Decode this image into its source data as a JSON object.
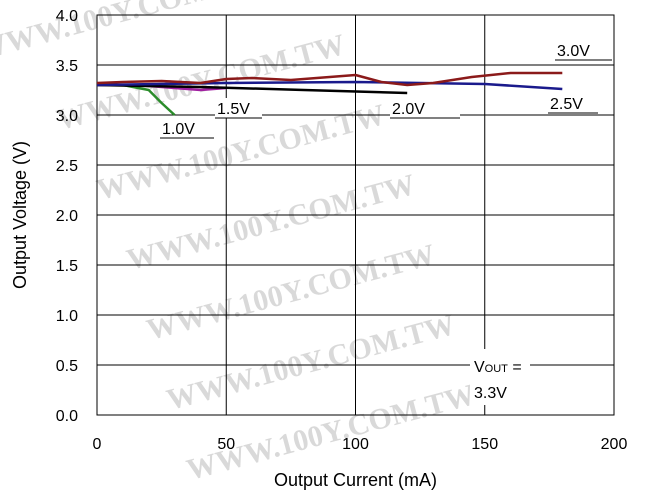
{
  "chart_data": {
    "type": "line",
    "title": "",
    "xlabel": "Output Current (mA)",
    "ylabel": "Output Voltage (V)",
    "xlim": [
      0,
      200
    ],
    "ylim": [
      0,
      4.0
    ],
    "x_ticks": [
      "0",
      "50",
      "100",
      "150",
      "200"
    ],
    "y_ticks": [
      "0.0",
      "0.5",
      "1.0",
      "1.5",
      "2.0",
      "2.5",
      "3.0",
      "3.5",
      "4.0"
    ],
    "grid": true,
    "watermark": "WWW.100Y.COM.TW",
    "annotation": {
      "main": "V",
      "subscript": "OUT",
      "suffix": " =",
      "value": "3.3V"
    },
    "series": [
      {
        "name": "1.0V",
        "color": "#2a8c2a",
        "x": [
          0,
          10,
          20,
          25,
          30
        ],
        "y": [
          3.3,
          3.3,
          3.25,
          3.12,
          3.0
        ]
      },
      {
        "name": "1.5V",
        "color": "#a020a0",
        "x": [
          0,
          15,
          30,
          40,
          50
        ],
        "y": [
          3.3,
          3.3,
          3.27,
          3.25,
          3.27
        ]
      },
      {
        "name": "2.0V",
        "color": "#000000",
        "x": [
          0,
          40,
          80,
          120
        ],
        "y": [
          3.3,
          3.28,
          3.25,
          3.22
        ]
      },
      {
        "name": "2.5V",
        "color": "#1a1a8c",
        "x": [
          0,
          50,
          100,
          150,
          180
        ],
        "y": [
          3.3,
          3.32,
          3.33,
          3.31,
          3.26
        ]
      },
      {
        "name": "3.0V",
        "color": "#8b1a1a",
        "x": [
          0,
          10,
          25,
          40,
          50,
          60,
          75,
          85,
          100,
          110,
          120,
          130,
          145,
          160,
          180
        ],
        "y": [
          3.32,
          3.33,
          3.34,
          3.32,
          3.36,
          3.37,
          3.35,
          3.37,
          3.4,
          3.33,
          3.3,
          3.32,
          3.38,
          3.42,
          3.42
        ]
      }
    ]
  }
}
